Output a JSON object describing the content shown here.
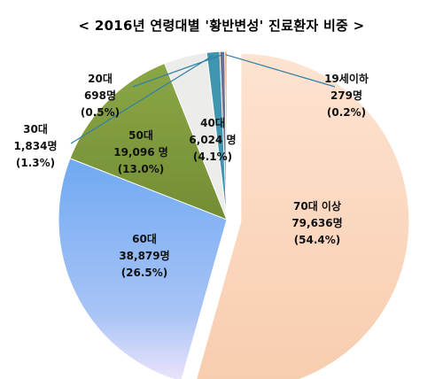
{
  "title": "< 2016년 연령대별 '황반변성' 진료환자 비중 >",
  "chart_data": {
    "type": "pie",
    "title": "< 2016년 연령대별 '황반변성' 진료환자 비중 >",
    "unit": "명",
    "slices": [
      {
        "label": "70대 이상",
        "count": "79,636명",
        "value": 79636,
        "percent": 54.4,
        "percent_label": "(54.4%)",
        "color": "#fbd9c3",
        "exploded": true
      },
      {
        "label": "60대",
        "count": "38,879명",
        "value": 38879,
        "percent": 26.5,
        "percent_label": "(26.5%)",
        "color": "#7fb3f4",
        "exploded": false
      },
      {
        "label": "50대",
        "count": "19,096 명",
        "value": 19096,
        "percent": 13.0,
        "percent_label": "(13.0%)",
        "color": "#7f9a3c",
        "exploded": false
      },
      {
        "label": "40대",
        "count": "6,024 명",
        "value": 6024,
        "percent": 4.1,
        "percent_label": "(4.1%)",
        "color": "#ececea",
        "exploded": false
      },
      {
        "label": "30대",
        "count": "1,834명",
        "value": 1834,
        "percent": 1.3,
        "percent_label": "(1.3%)",
        "color": "#3f96ae",
        "exploded": false
      },
      {
        "label": "20대",
        "count": "698명",
        "value": 698,
        "percent": 0.5,
        "percent_label": "(0.5%)",
        "color": "#6f6f8f",
        "exploded": false
      },
      {
        "label": "19세이하",
        "count": "279명",
        "value": 279,
        "percent": 0.2,
        "percent_label": "(0.2%)",
        "color": "#e88f4a",
        "exploded": false
      }
    ]
  }
}
